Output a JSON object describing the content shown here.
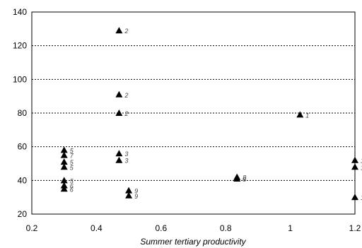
{
  "chart_data": {
    "type": "scatter",
    "xlabel": "Summer tertiary productivity",
    "ylabel": "",
    "xlim": [
      0.2,
      1.2
    ],
    "ylim": [
      20,
      140
    ],
    "xticks": [
      "0.2",
      "0.4",
      "0.6",
      "0.8",
      "1",
      "1.2"
    ],
    "yticks": [
      "20",
      "40",
      "60",
      "80",
      "100",
      "120",
      "140"
    ],
    "grid": "horizontal dotted",
    "points": [
      {
        "x": 0.47,
        "y": 129,
        "label": "2"
      },
      {
        "x": 0.47,
        "y": 91,
        "label": "2"
      },
      {
        "x": 0.47,
        "y": 80,
        "label": "2"
      },
      {
        "x": 1.03,
        "y": 79,
        "label": "1"
      },
      {
        "x": 0.3,
        "y": 58,
        "label": "5"
      },
      {
        "x": 0.3,
        "y": 55,
        "label": "7"
      },
      {
        "x": 0.3,
        "y": 51,
        "label": "5"
      },
      {
        "x": 0.3,
        "y": 48,
        "label": "5"
      },
      {
        "x": 0.3,
        "y": 40,
        "label": "5"
      },
      {
        "x": 0.3,
        "y": 37,
        "label": "6"
      },
      {
        "x": 0.3,
        "y": 35,
        "label": "6"
      },
      {
        "x": 0.47,
        "y": 56,
        "label": "3"
      },
      {
        "x": 0.47,
        "y": 52,
        "label": "3"
      },
      {
        "x": 0.5,
        "y": 34,
        "label": "9"
      },
      {
        "x": 0.5,
        "y": 31,
        "label": "9"
      },
      {
        "x": 0.835,
        "y": 42,
        "label": "8"
      },
      {
        "x": 0.835,
        "y": 41,
        "label": "8"
      },
      {
        "x": 1.2,
        "y": 52,
        "label": "1"
      },
      {
        "x": 1.2,
        "y": 48,
        "label": "1"
      },
      {
        "x": 1.2,
        "y": 30,
        "label": "1"
      }
    ]
  }
}
